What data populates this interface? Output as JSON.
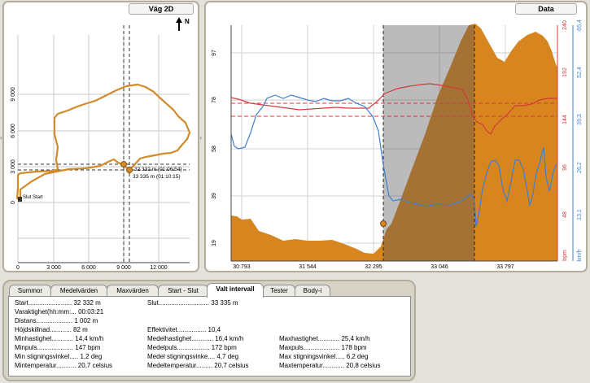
{
  "map": {
    "title": "Väg 2D",
    "north": "N",
    "x_ticks": [
      "0",
      "3 000",
      "6 000",
      "9 000",
      "12 000"
    ],
    "y_ticks": [
      "9 000",
      "6 000",
      "3 000",
      "0"
    ],
    "start_label": "Slut Start",
    "marker1_label": "32 332 m (01:06:54)",
    "marker2_label": "33 335 m (01:10:15)"
  },
  "data": {
    "title": "Data",
    "x_ticks": [
      "30 793",
      "31 544",
      "32 295",
      "33 046",
      "33 797"
    ],
    "left_ticks": [
      "97",
      "78",
      "58",
      "39",
      "19"
    ],
    "bpm_ticks": [
      "240",
      "192",
      "144",
      "96",
      "48"
    ],
    "speed_ticks": [
      "65,4",
      "52,4",
      "39,3",
      "26,2",
      "13,1"
    ],
    "bpm_unit": "bpm",
    "speed_unit": "km/h"
  },
  "tabs": [
    {
      "label": "Summor"
    },
    {
      "label": "Medelvärden"
    },
    {
      "label": "Maxvärden"
    },
    {
      "label": "Start - Slut"
    },
    {
      "label": "Valt intervall"
    },
    {
      "label": "Tester"
    },
    {
      "label": "Body-i"
    }
  ],
  "stats": {
    "rows": [
      [
        "Start........................ 32 332 m",
        "Slut............................ 33 335 m",
        ""
      ],
      [
        "Varaktighet(hh:mm:... 00:03:21",
        "",
        ""
      ],
      [
        "Distans.................... 1 002 m",
        "",
        ""
      ],
      [
        "Höjdskillnad............ 82 m",
        "Effektivitet................ 10,4",
        ""
      ],
      [
        "Minhastighet............ 14,4 km/h",
        "Medelhastighet............ 16,4 km/h",
        "Maxhastighet............ 25,4 km/h"
      ],
      [
        "Minpuls.................... 147 bpm",
        "Medelpuls.................. 172 bpm",
        "Maxpuls.................... 178 bpm"
      ],
      [
        "Min stigningsvinkel..... 1,2 deg",
        "Medel stigningsvinke.... 4,7 deg",
        "Max stigningsvinkel..... 6,2 deg"
      ],
      [
        "Mintemperatur........... 20,7 celsius",
        "Medeltemperatur......... 20,7 celsius",
        "Maxtemperatur............ 20,8 celsius"
      ]
    ]
  },
  "colors": {
    "route": "#d28a2a",
    "altitude": "#d7851f",
    "heart_rate": "#d63a3a",
    "speed": "#3f7fd0",
    "selection": "#aaaaaa"
  }
}
